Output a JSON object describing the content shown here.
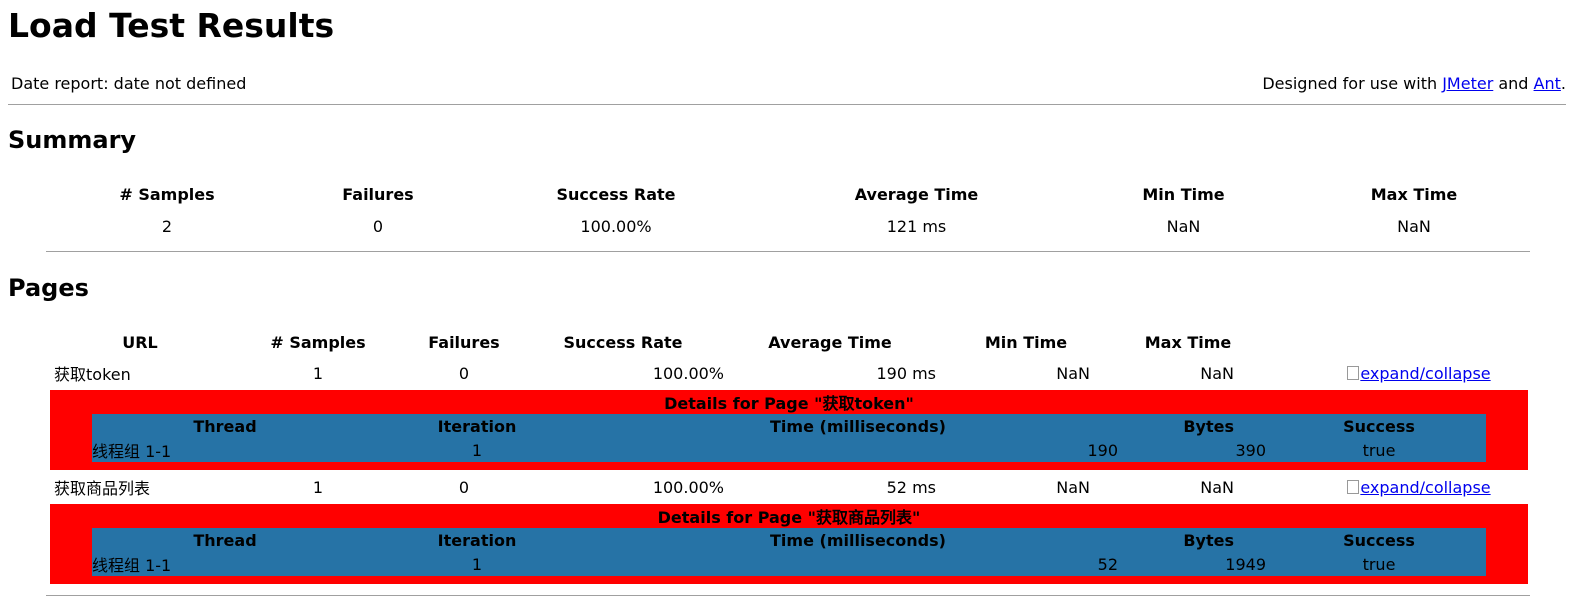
{
  "title": "Load Test Results",
  "date_report": "Date report: date not defined",
  "designed_for": {
    "prefix": "Designed for use with ",
    "link1": "JMeter",
    "mid": " and ",
    "link2": "Ant",
    "suffix": "."
  },
  "summary": {
    "heading": "Summary",
    "headers": [
      "# Samples",
      "Failures",
      "Success Rate",
      "Average Time",
      "Min Time",
      "Max Time"
    ],
    "values": [
      "2",
      "0",
      "100.00%",
      "121 ms",
      "NaN",
      "NaN"
    ]
  },
  "pages": {
    "heading": "Pages",
    "headers": [
      "URL",
      "# Samples",
      "Failures",
      "Success Rate",
      "Average Time",
      "Min Time",
      "Max Time"
    ],
    "expand_label": "expand/collapse",
    "detail_headers": [
      "Thread",
      "Iteration",
      "Time (milliseconds)",
      "Bytes",
      "Success"
    ],
    "rows": [
      {
        "url": "获取token",
        "samples": "1",
        "failures": "0",
        "success_rate": "100.00%",
        "avg": "190 ms",
        "min": "NaN",
        "max": "NaN",
        "details_title": "Details for Page \"获取token\"",
        "detail": {
          "thread": "线程组 1-1",
          "iteration": "1",
          "time": "190",
          "bytes": "390",
          "success": "true"
        }
      },
      {
        "url": "获取商品列表",
        "samples": "1",
        "failures": "0",
        "success_rate": "100.00%",
        "avg": "52 ms",
        "min": "NaN",
        "max": "NaN",
        "details_title": "Details for Page \"获取商品列表\"",
        "detail": {
          "thread": "线程组 1-1",
          "iteration": "1",
          "time": "52",
          "bytes": "1949",
          "success": "true"
        }
      }
    ]
  }
}
